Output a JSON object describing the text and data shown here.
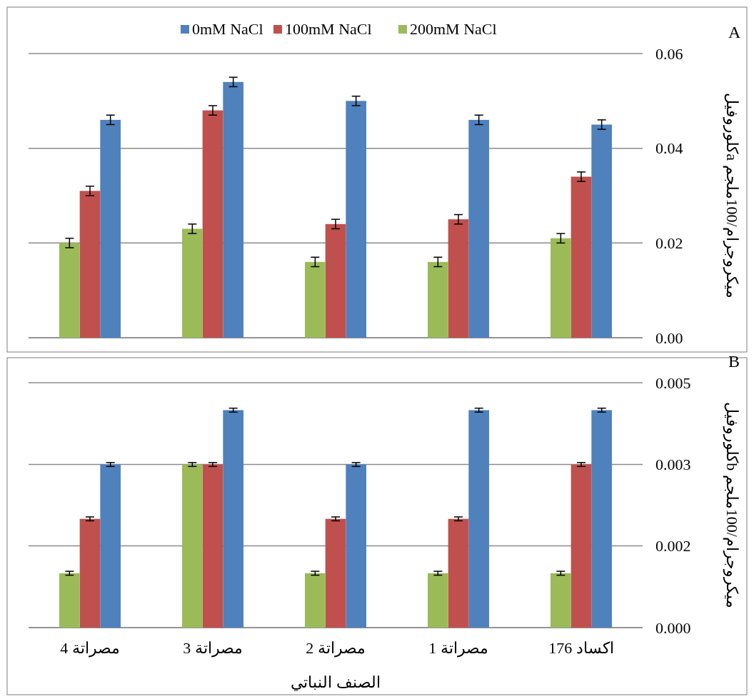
{
  "chart_data": [
    {
      "type": "bar",
      "ylabel": "كلوروفيلa  ميكروجرام/100ملجم",
      "annotations": [
        "A"
      ],
      "categories": [
        null,
        null,
        null,
        null,
        null
      ],
      "tick_labels": "y",
      "legend": "top",
      "grid": "y",
      "ylim": [
        0,
        0.06
      ],
      "yticks": [
        {
          "value": 0,
          "label": "0.00"
        },
        0.02,
        0.04,
        0.06
      ],
      "series": [
        {
          "name": "0mM NaCl",
          "color": "#4f81bd",
          "values": [
            0.046,
            0.054,
            0.05,
            0.046,
            0.045
          ],
          "errors": [
            0.001,
            0.001,
            0.001,
            0.001,
            0.001
          ]
        },
        {
          "name": "100mM NaCl",
          "color": "#c0504d",
          "values": [
            0.031,
            0.048,
            0.024,
            0.025,
            0.034
          ],
          "errors": [
            0.001,
            0.001,
            0.001,
            0.001,
            0.001
          ]
        },
        {
          "name": "200mM NaCl",
          "color": "#9bbb59",
          "values": [
            0.02,
            0.023,
            0.016,
            0.016,
            0.021
          ],
          "errors": [
            0.001,
            0.001,
            0.001,
            0.001,
            0.001
          ]
        }
      ]
    },
    {
      "type": "bar",
      "ylabel": "كلوروفيلb ميكروجرام/100ملجم",
      "xlabel": "الصنف النباتي",
      "annotations": [
        "B"
      ],
      "categories": [
        "مصراتة 4",
        "مصراتة 3",
        "مصراتة 2",
        "مصراتة 1",
        "اكساد 176"
      ],
      "grid": "y",
      "ylim": [
        0,
        0.005
      ],
      "yticks": [
        {
          "value": 0,
          "label": "0.000"
        },
        {
          "value": 0.00167,
          "label": "0.002"
        },
        {
          "value": 0.00333,
          "label": "0.003"
        },
        0.005
      ],
      "series": [
        {
          "color": "#4f81bd",
          "values": [
            0.00333,
            0.00444,
            0.00333,
            0.00444,
            0.00444
          ],
          "errors": [
            4e-05,
            4e-05,
            4e-05,
            4e-05,
            4e-05
          ]
        },
        {
          "color": "#c0504d",
          "values": [
            0.00222,
            0.00333,
            0.00222,
            0.00222,
            0.00333
          ],
          "errors": [
            4e-05,
            4e-05,
            4e-05,
            4e-05,
            4e-05
          ]
        },
        {
          "color": "#9bbb59",
          "values": [
            0.00111,
            0.00333,
            0.00111,
            0.00111,
            0.00111
          ],
          "errors": [
            4e-05,
            4e-05,
            4e-05,
            4e-05,
            4e-05
          ]
        }
      ]
    }
  ]
}
